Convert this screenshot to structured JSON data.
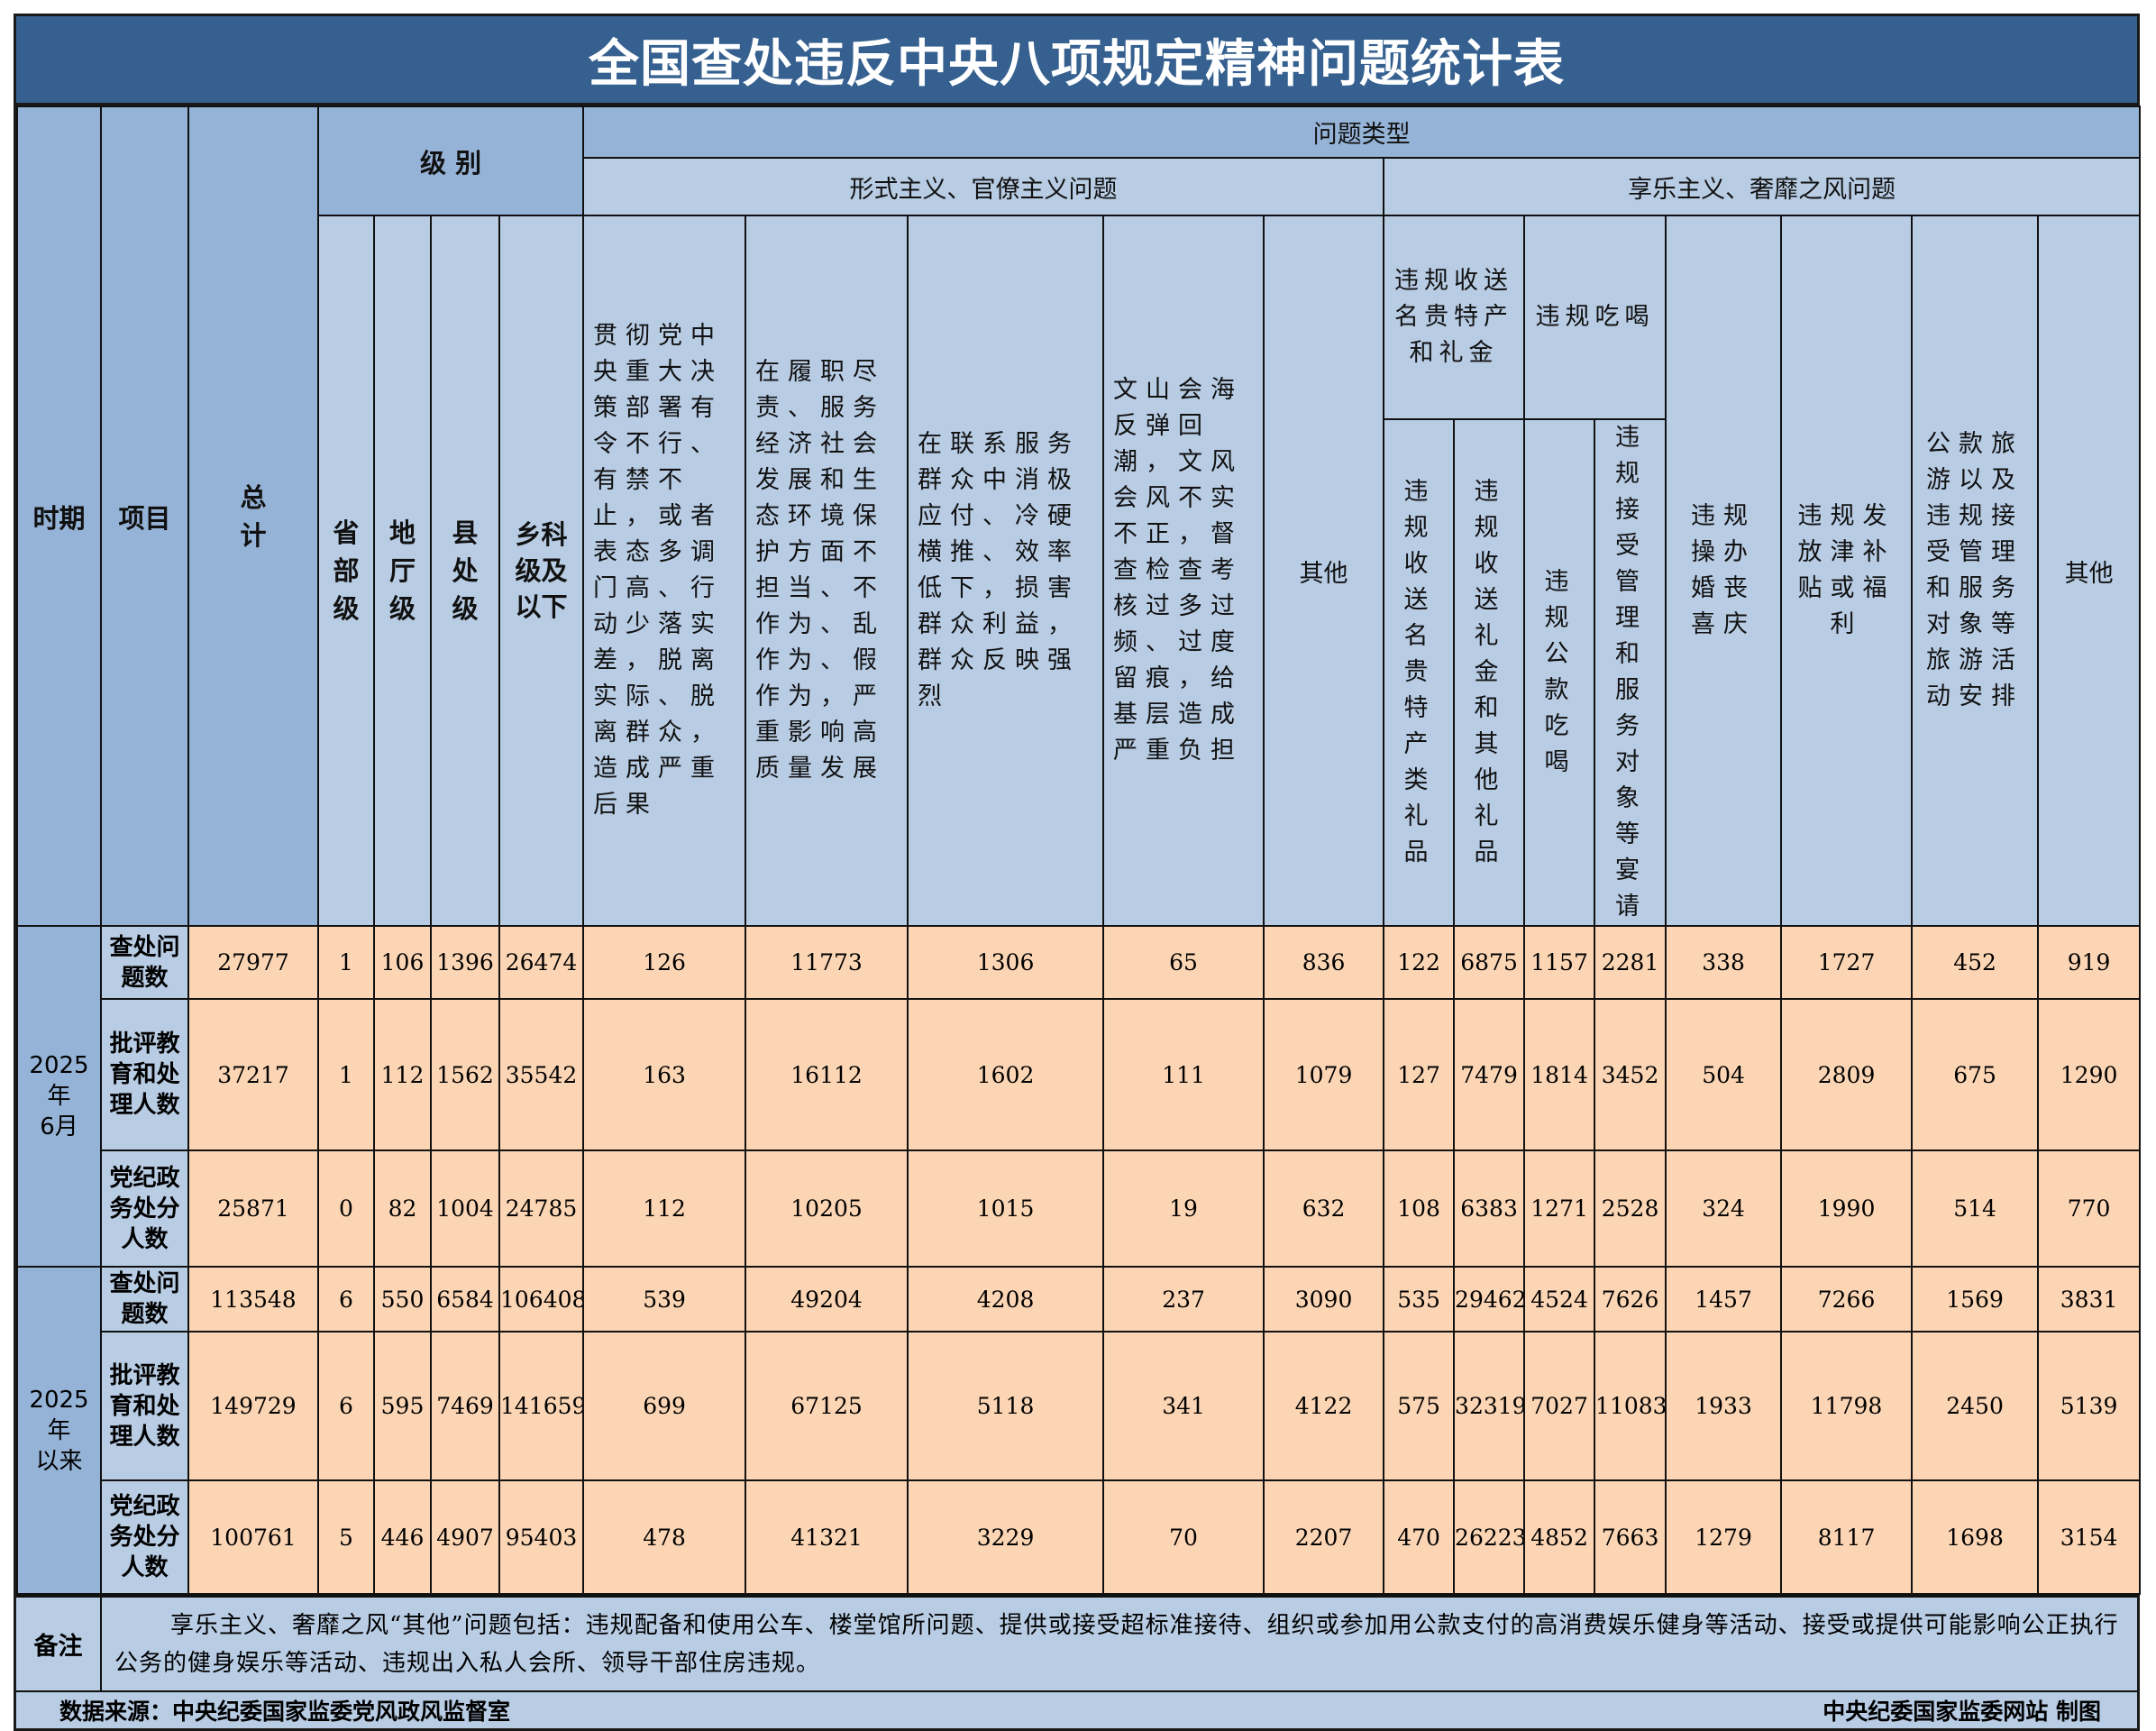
{
  "title": "全国查处违反中央八项规定精神问题统计表",
  "header": {
    "period": "时期",
    "item": "项目",
    "total": "总计",
    "level": "级 别",
    "levels": [
      "省部级",
      "地厅级",
      "县处级",
      "乡科级及以下"
    ],
    "problem_type": "问题类型",
    "formalism_group": "形式主义、官僚主义问题",
    "hedonism_group": "享乐主义、奢靡之风问题",
    "formalism_cols": [
      "贯彻党中央重大决策部署有令不行、有禁不止，或者表态多调门高、行动少落实差，脱离实际、脱离群众，造成严重后果",
      "在履职尽责、服务经济社会发展和生态环境保护方面不担当、不作为、乱作为、假作为，严重影响高质量发展",
      "在联系服务群众中消极应付、冷硬横推、效率低下，损害群众利益，群众反映强烈",
      "文山会海反弹回潮，文风会风不实不正，督查检查考核过多过频、过度留痕，给基层造成严重负担",
      "其他"
    ],
    "gift_group": "违规收送名贵特产和礼金",
    "gift_cols": [
      "违规收送名贵特产类礼品",
      "违规收送礼金和其他礼品"
    ],
    "dining_group": "违规吃喝",
    "dining_cols": [
      "违规公款吃喝",
      "违规接受管理和服务对象等宴请"
    ],
    "hedonism_cols": [
      "违规操办婚丧喜庆",
      "违规发放津补贴或福利",
      "公款旅游以及违规接受管理和服务对象等旅游活动安排",
      "其他"
    ]
  },
  "periods": [
    {
      "label_line1": "2025年",
      "label_line2": "6月",
      "rows": [
        {
          "label": "查处问题数",
          "values": [
            "27977",
            "1",
            "106",
            "1396",
            "26474",
            "126",
            "11773",
            "1306",
            "65",
            "836",
            "122",
            "6875",
            "1157",
            "2281",
            "338",
            "1727",
            "452",
            "919"
          ]
        },
        {
          "label": "批评教育和处理人数",
          "values": [
            "37217",
            "1",
            "112",
            "1562",
            "35542",
            "163",
            "16112",
            "1602",
            "111",
            "1079",
            "127",
            "7479",
            "1814",
            "3452",
            "504",
            "2809",
            "675",
            "1290"
          ]
        },
        {
          "label": "党纪政务处分人数",
          "values": [
            "25871",
            "0",
            "82",
            "1004",
            "24785",
            "112",
            "10205",
            "1015",
            "19",
            "632",
            "108",
            "6383",
            "1271",
            "2528",
            "324",
            "1990",
            "514",
            "770"
          ]
        }
      ]
    },
    {
      "label_line1": "2025年",
      "label_line2": "以来",
      "rows": [
        {
          "label": "查处问题数",
          "values": [
            "113548",
            "6",
            "550",
            "6584",
            "106408",
            "539",
            "49204",
            "4208",
            "237",
            "3090",
            "535",
            "29462",
            "4524",
            "7626",
            "1457",
            "7266",
            "1569",
            "3831"
          ]
        },
        {
          "label": "批评教育和处理人数",
          "values": [
            "149729",
            "6",
            "595",
            "7469",
            "141659",
            "699",
            "67125",
            "5118",
            "341",
            "4122",
            "575",
            "32319",
            "7027",
            "11083",
            "1933",
            "11798",
            "2450",
            "5139"
          ]
        },
        {
          "label": "党纪政务处分人数",
          "values": [
            "100761",
            "5",
            "446",
            "4907",
            "95403",
            "478",
            "41321",
            "3229",
            "70",
            "2207",
            "470",
            "26223",
            "4852",
            "7663",
            "1279",
            "8117",
            "1698",
            "3154"
          ]
        }
      ]
    }
  ],
  "note": {
    "label": "备注",
    "text": "享乐主义、奢靡之风“其他”问题包括：违规配备和使用公车、楼堂馆所问题、提供或接受超标准接待、组织或参加用公款支付的高消费娱乐健身等活动、接受或提供可能影响公正执行公务的健身娱乐等活动、违规出入私人会所、领导干部住房违规。"
  },
  "footer": {
    "source": "数据来源：中央纪委国家监委党风政风监督室",
    "credit": "中央纪委国家监委网站 制图"
  },
  "colors": {
    "title_bg": "#35608f",
    "header_bg": "#b8cce4",
    "side_bg": "#95b3d7",
    "data_bg": "#fcd5b4"
  }
}
